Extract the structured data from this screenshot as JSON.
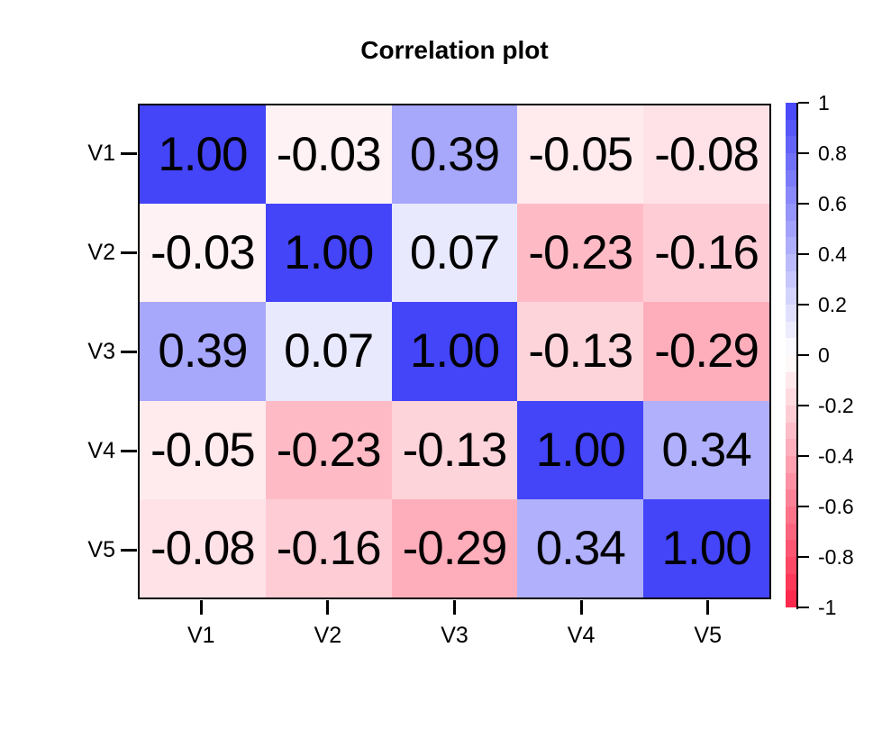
{
  "chart_data": {
    "type": "heatmap",
    "title": "Correlation plot",
    "x_categories": [
      "V1",
      "V2",
      "V3",
      "V4",
      "V5"
    ],
    "y_categories": [
      "V1",
      "V2",
      "V3",
      "V4",
      "V5"
    ],
    "matrix": [
      [
        1.0,
        -0.03,
        0.39,
        -0.05,
        -0.08
      ],
      [
        -0.03,
        1.0,
        0.07,
        -0.23,
        -0.16
      ],
      [
        0.39,
        0.07,
        1.0,
        -0.13,
        -0.29
      ],
      [
        -0.05,
        -0.23,
        -0.13,
        1.0,
        0.34
      ],
      [
        -0.08,
        -0.16,
        -0.29,
        0.34,
        1.0
      ]
    ],
    "cell_label_decimals": 2,
    "value_range": [
      -1,
      1
    ],
    "grid": false,
    "colorbar": {
      "position": "right",
      "tick_labels": [
        "1",
        "0.8",
        "0.6",
        "0.4",
        "0.2",
        "0",
        "-0.2",
        "-0.4",
        "-0.6",
        "-0.8",
        "-1"
      ],
      "band_count": 30
    },
    "colors": {
      "positive_end": "#4444F8",
      "zero_mid": "#FFFFFF",
      "negative_end": "#FC2347",
      "cell_text": "#000000",
      "axis": "#000000"
    }
  }
}
